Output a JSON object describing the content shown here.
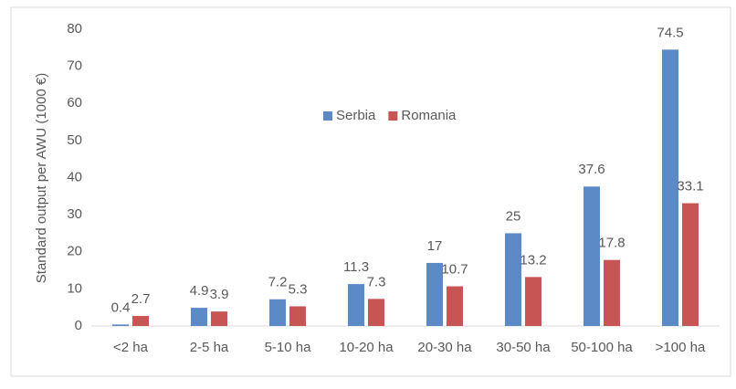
{
  "chart_data": {
    "type": "bar",
    "y_label": "Standard output per AWU (1000 €)",
    "categories": [
      "<2 ha",
      "2-5 ha",
      "5-10 ha",
      "10-20 ha",
      "20-30 ha",
      "30-50 ha",
      "50-100 ha",
      ">100 ha"
    ],
    "series": [
      {
        "name": "Serbia",
        "color": "#5b8ac6",
        "values": [
          0.4,
          4.9,
          7.2,
          11.3,
          17,
          25,
          37.6,
          74.5
        ]
      },
      {
        "name": "Romania",
        "color": "#c65553",
        "values": [
          2.7,
          3.9,
          5.3,
          7.3,
          10.7,
          13.2,
          17.8,
          33.1
        ]
      }
    ],
    "ylim": [
      0,
      80
    ],
    "yticks": [
      0,
      10,
      20,
      30,
      40,
      50,
      60,
      70,
      80
    ],
    "grid": false,
    "legend": "upper center"
  }
}
